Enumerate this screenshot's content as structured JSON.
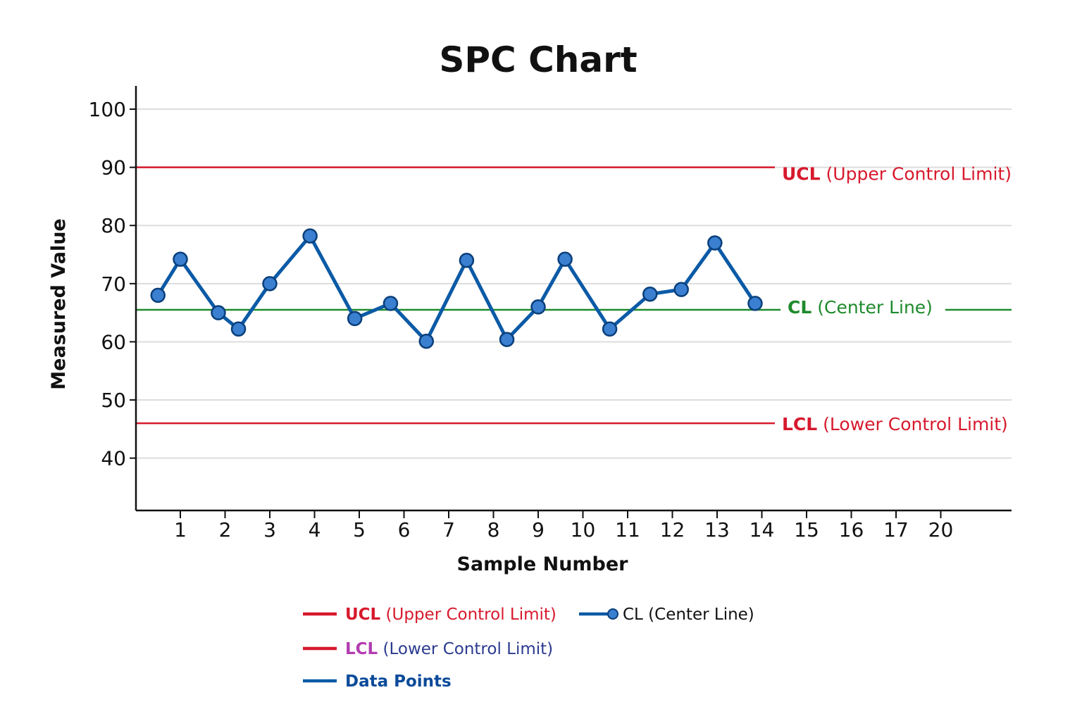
{
  "chart_data": {
    "type": "line",
    "title": "SPC Chart",
    "xlabel": "Sample Number",
    "ylabel": "Measured Value",
    "ylim": [
      31,
      104
    ],
    "y_ticks": [
      40,
      50,
      60,
      70,
      80,
      90,
      100
    ],
    "x_tick_labels": [
      "1",
      "2",
      "3",
      "4",
      "5",
      "6",
      "7",
      "8",
      "9",
      "10",
      "11",
      "12",
      "13",
      "14",
      "15",
      "16",
      "17",
      "20"
    ],
    "grid": true,
    "reference_lines": [
      {
        "id": "ucl",
        "abbr": "UCL",
        "desc": "(Upper Control Limit)",
        "value": 90,
        "color": "#d7192d"
      },
      {
        "id": "cl",
        "abbr": "CL",
        "desc": "(Center Line)",
        "value": 65.5,
        "color": "#1e8a2c"
      },
      {
        "id": "lcl",
        "abbr": "LCL",
        "desc": "(Lower Control Limit)",
        "value": 46,
        "color": "#d7192d"
      }
    ],
    "series": [
      {
        "name": "Data Points",
        "color": "#0b5aa6",
        "x": [
          0.5,
          1,
          1.85,
          2.3,
          3,
          3.9,
          4.9,
          5.7,
          6.5,
          7.4,
          8.3,
          9,
          9.6,
          10.6,
          11.5,
          12.2,
          12.95,
          13.85
        ],
        "y": [
          68,
          74.2,
          65,
          62.2,
          70,
          78.2,
          64,
          66.6,
          60.1,
          74,
          60.4,
          66,
          74.2,
          62.2,
          68.2,
          69,
          77,
          66.6
        ]
      }
    ],
    "legend": {
      "placement": "bottom",
      "items": [
        {
          "abbr": "UCL",
          "desc": "(Upper Control Limit)",
          "line_color": "#d7192d",
          "abbr_color": "#d7192d",
          "desc_color": "#d7192d",
          "marker": false
        },
        {
          "abbr": "",
          "desc": "CL (Center Line)",
          "line_color": "#0b5aa6",
          "abbr_color": "#111111",
          "desc_color": "#111111",
          "marker": true
        },
        {
          "abbr": "LCL",
          "desc": "(Lower Control Limit)",
          "line_color": "#d7192d",
          "abbr_color": "#b23cb0",
          "desc_color": "#2b3a8f",
          "marker": false
        },
        {
          "abbr": "Data Points",
          "desc": "",
          "line_color": "#0b5aa6",
          "abbr_color": "#0b4a9a",
          "desc_color": "#0b4a9a",
          "marker": false
        }
      ]
    }
  }
}
